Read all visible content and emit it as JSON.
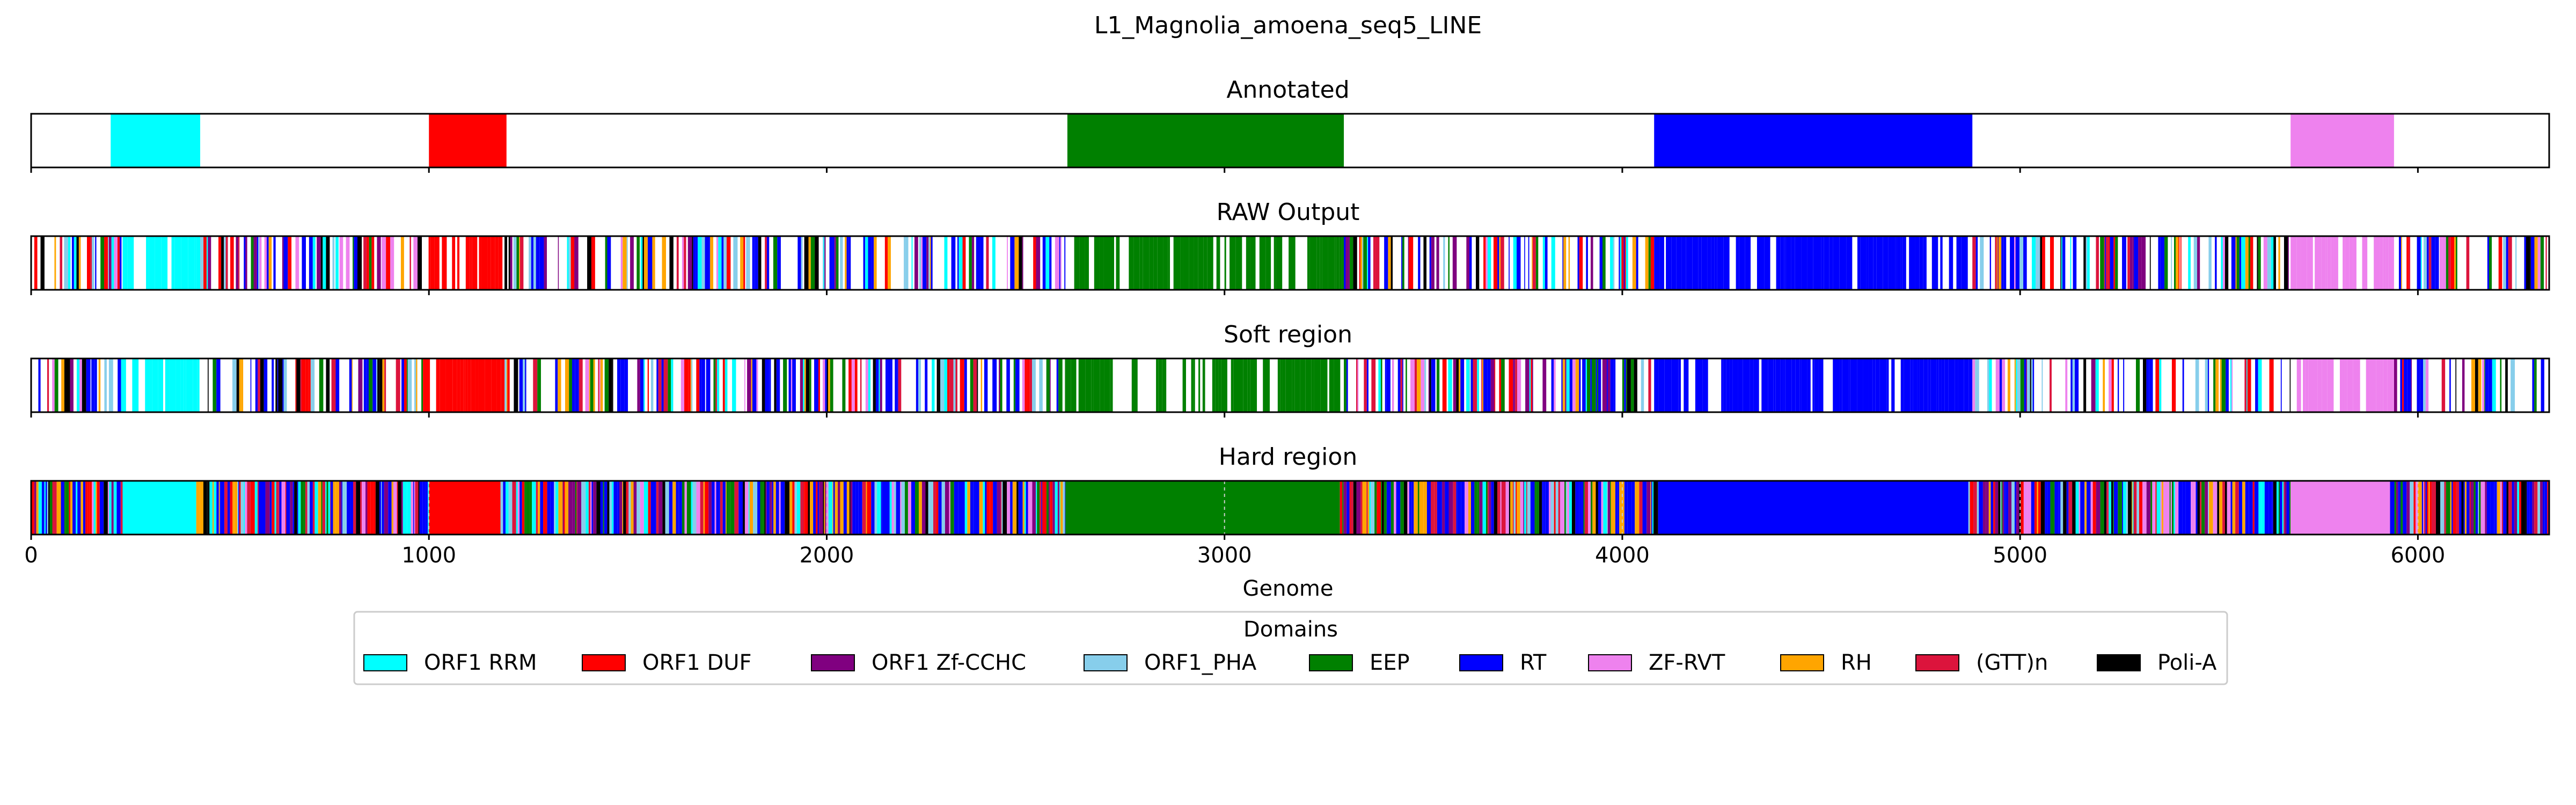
{
  "chart_data": {
    "type": "domain-track",
    "title": "L1_Magnolia_amoena_seq5_LINE",
    "xlabel": "Genome",
    "xlim": [
      0,
      6330
    ],
    "xticks": [
      0,
      1000,
      2000,
      3000,
      4000,
      5000,
      6000
    ],
    "xtick_labels": [
      "0",
      "1000",
      "2000",
      "3000",
      "4000",
      "5000",
      "6000"
    ],
    "legend": {
      "title": "Domains",
      "placement": "below",
      "items": [
        {
          "name": "ORF1 RRM",
          "color": "#00ffff"
        },
        {
          "name": "ORF1 DUF",
          "color": "#ff0000"
        },
        {
          "name": "ORF1 Zf-CCHC",
          "color": "#800080"
        },
        {
          "name": "ORF1_PHA",
          "color": "#87ceeb"
        },
        {
          "name": "EEP",
          "color": "#008000"
        },
        {
          "name": "RT",
          "color": "#0000ff"
        },
        {
          "name": "ZF-RVT",
          "color": "#ee82ee"
        },
        {
          "name": "RH",
          "color": "#ffa500"
        },
        {
          "name": "(GTT)n",
          "color": "#dc143c"
        },
        {
          "name": "Poli-A",
          "color": "#000000"
        }
      ]
    },
    "tracks": [
      {
        "name": "Annotated",
        "segments": [
          {
            "domain": "ORF1 RRM",
            "start": 200,
            "end": 425
          },
          {
            "domain": "ORF1 DUF",
            "start": 1000,
            "end": 1195
          },
          {
            "domain": "EEP",
            "start": 2605,
            "end": 3300
          },
          {
            "domain": "RT",
            "start": 4080,
            "end": 4880
          },
          {
            "domain": "ZF-RVT",
            "start": 5680,
            "end": 5940
          }
        ]
      },
      {
        "name": "RAW Output",
        "segments": [
          {
            "domain": "mixed",
            "start": 0,
            "end": 230
          },
          {
            "domain": "ORF1 RRM",
            "start": 230,
            "end": 425
          },
          {
            "domain": "mixed",
            "start": 425,
            "end": 985
          },
          {
            "domain": "ORF1 DUF",
            "start": 985,
            "end": 1190
          },
          {
            "domain": "mixed",
            "start": 1190,
            "end": 2600
          },
          {
            "domain": "EEP",
            "start": 2600,
            "end": 3300
          },
          {
            "domain": "mixed",
            "start": 3300,
            "end": 4080
          },
          {
            "domain": "RT",
            "start": 4080,
            "end": 4880
          },
          {
            "domain": "mixed",
            "start": 4880,
            "end": 5680
          },
          {
            "domain": "ZF-RVT",
            "start": 5680,
            "end": 5940
          },
          {
            "domain": "mixed",
            "start": 5940,
            "end": 6330
          }
        ],
        "gap_fraction": 0.38
      },
      {
        "name": "Soft region",
        "segments": [
          {
            "domain": "mixed",
            "start": 0,
            "end": 230
          },
          {
            "domain": "ORF1 RRM",
            "start": 230,
            "end": 425
          },
          {
            "domain": "mixed",
            "start": 425,
            "end": 985
          },
          {
            "domain": "ORF1 DUF",
            "start": 985,
            "end": 1190
          },
          {
            "domain": "mixed",
            "start": 1190,
            "end": 2600
          },
          {
            "domain": "EEP",
            "start": 2600,
            "end": 3300
          },
          {
            "domain": "mixed",
            "start": 3300,
            "end": 4080
          },
          {
            "domain": "RT",
            "start": 4080,
            "end": 4880
          },
          {
            "domain": "mixed",
            "start": 4880,
            "end": 5680
          },
          {
            "domain": "ZF-RVT",
            "start": 5680,
            "end": 5940
          },
          {
            "domain": "mixed",
            "start": 5940,
            "end": 6330
          }
        ],
        "gap_fraction": 0.38
      },
      {
        "name": "Hard region",
        "segments": [
          {
            "domain": "mixed",
            "start": 0,
            "end": 230
          },
          {
            "domain": "ORF1 RRM",
            "start": 230,
            "end": 415
          },
          {
            "domain": "mixed",
            "start": 415,
            "end": 1000
          },
          {
            "domain": "ORF1 DUF",
            "start": 1000,
            "end": 1180
          },
          {
            "domain": "mixed",
            "start": 1180,
            "end": 2600
          },
          {
            "domain": "EEP",
            "start": 2600,
            "end": 3290
          },
          {
            "domain": "mixed",
            "start": 3290,
            "end": 4090
          },
          {
            "domain": "RT",
            "start": 4090,
            "end": 4870
          },
          {
            "domain": "mixed",
            "start": 4870,
            "end": 5680
          },
          {
            "domain": "ZF-RVT",
            "start": 5680,
            "end": 5930
          },
          {
            "domain": "mixed",
            "start": 5930,
            "end": 6330
          }
        ],
        "gap_fraction": 0
      }
    ]
  }
}
